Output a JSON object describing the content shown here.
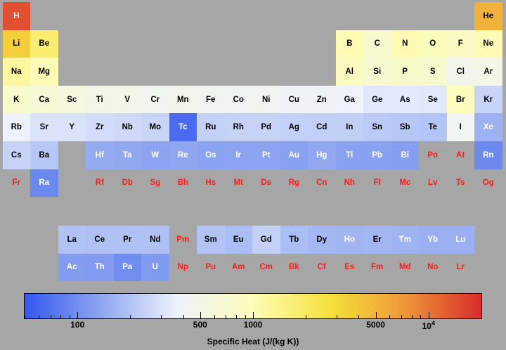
{
  "chart_data": {
    "type": "heatmap",
    "title": "",
    "colorbar": {
      "label": "Specific Heat (J/(kg K))",
      "scale": "log",
      "range": [
        50,
        20000
      ],
      "ticks": [
        {
          "value": 100,
          "label": "100"
        },
        {
          "value": 500,
          "label": "500"
        },
        {
          "value": 1000,
          "label": "1000"
        },
        {
          "value": 5000,
          "label": "5000"
        },
        {
          "value": 10000,
          "label": "10",
          "exponent": "4"
        }
      ],
      "colors": [
        "#3558f0",
        "#8ea6f0",
        "#eef3fc",
        "#fdfcb8",
        "#f6e23c",
        "#ee9838",
        "#db2c2c"
      ]
    },
    "no_data_color": "#ff1a1a",
    "elements": [
      {
        "symbol": "H",
        "row": 1,
        "col": 1,
        "value": 14300
      },
      {
        "symbol": "He",
        "row": 1,
        "col": 18,
        "value": 5193
      },
      {
        "symbol": "Li",
        "row": 2,
        "col": 1,
        "value": 3570
      },
      {
        "symbol": "Be",
        "row": 2,
        "col": 2,
        "value": 1820
      },
      {
        "symbol": "B",
        "row": 2,
        "col": 13,
        "value": 1030
      },
      {
        "symbol": "C",
        "row": 2,
        "col": 14,
        "value": 710
      },
      {
        "symbol": "N",
        "row": 2,
        "col": 15,
        "value": 1040
      },
      {
        "symbol": "O",
        "row": 2,
        "col": 16,
        "value": 919
      },
      {
        "symbol": "F",
        "row": 2,
        "col": 17,
        "value": 824
      },
      {
        "symbol": "Ne",
        "row": 2,
        "col": 18,
        "value": 1030
      },
      {
        "symbol": "Na",
        "row": 3,
        "col": 1,
        "value": 1230
      },
      {
        "symbol": "Mg",
        "row": 3,
        "col": 2,
        "value": 1020
      },
      {
        "symbol": "Al",
        "row": 3,
        "col": 13,
        "value": 897
      },
      {
        "symbol": "Si",
        "row": 3,
        "col": 14,
        "value": 705
      },
      {
        "symbol": "P",
        "row": 3,
        "col": 15,
        "value": 769
      },
      {
        "symbol": "S",
        "row": 3,
        "col": 16,
        "value": 710
      },
      {
        "symbol": "Cl",
        "row": 3,
        "col": 17,
        "value": 479
      },
      {
        "symbol": "Ar",
        "row": 3,
        "col": 18,
        "value": 520
      },
      {
        "symbol": "K",
        "row": 4,
        "col": 1,
        "value": 757
      },
      {
        "symbol": "Ca",
        "row": 4,
        "col": 2,
        "value": 647
      },
      {
        "symbol": "Sc",
        "row": 4,
        "col": 3,
        "value": 568
      },
      {
        "symbol": "Ti",
        "row": 4,
        "col": 4,
        "value": 523
      },
      {
        "symbol": "V",
        "row": 4,
        "col": 5,
        "value": 489
      },
      {
        "symbol": "Cr",
        "row": 4,
        "col": 6,
        "value": 449
      },
      {
        "symbol": "Mn",
        "row": 4,
        "col": 7,
        "value": 479
      },
      {
        "symbol": "Fe",
        "row": 4,
        "col": 8,
        "value": 449
      },
      {
        "symbol": "Co",
        "row": 4,
        "col": 9,
        "value": 421
      },
      {
        "symbol": "Ni",
        "row": 4,
        "col": 10,
        "value": 444
      },
      {
        "symbol": "Cu",
        "row": 4,
        "col": 11,
        "value": 384
      },
      {
        "symbol": "Zn",
        "row": 4,
        "col": 12,
        "value": 388
      },
      {
        "symbol": "Ga",
        "row": 4,
        "col": 13,
        "value": 371
      },
      {
        "symbol": "Ge",
        "row": 4,
        "col": 14,
        "value": 320
      },
      {
        "symbol": "As",
        "row": 4,
        "col": 15,
        "value": 329
      },
      {
        "symbol": "Se",
        "row": 4,
        "col": 16,
        "value": 321
      },
      {
        "symbol": "Br",
        "row": 4,
        "col": 17,
        "value": 947
      },
      {
        "symbol": "Kr",
        "row": 4,
        "col": 18,
        "value": 248
      },
      {
        "symbol": "Rb",
        "row": 5,
        "col": 1,
        "value": 364
      },
      {
        "symbol": "Sr",
        "row": 5,
        "col": 2,
        "value": 300
      },
      {
        "symbol": "Y",
        "row": 5,
        "col": 3,
        "value": 298
      },
      {
        "symbol": "Zr",
        "row": 5,
        "col": 4,
        "value": 278
      },
      {
        "symbol": "Nb",
        "row": 5,
        "col": 5,
        "value": 265
      },
      {
        "symbol": "Mo",
        "row": 5,
        "col": 6,
        "value": 251
      },
      {
        "symbol": "Tc",
        "row": 5,
        "col": 7,
        "value": 63
      },
      {
        "symbol": "Ru",
        "row": 5,
        "col": 8,
        "value": 238
      },
      {
        "symbol": "Rh",
        "row": 5,
        "col": 9,
        "value": 243
      },
      {
        "symbol": "Pd",
        "row": 5,
        "col": 10,
        "value": 244
      },
      {
        "symbol": "Ag",
        "row": 5,
        "col": 11,
        "value": 235
      },
      {
        "symbol": "Cd",
        "row": 5,
        "col": 12,
        "value": 232
      },
      {
        "symbol": "In",
        "row": 5,
        "col": 13,
        "value": 233
      },
      {
        "symbol": "Sn",
        "row": 5,
        "col": 14,
        "value": 217
      },
      {
        "symbol": "Sb",
        "row": 5,
        "col": 15,
        "value": 207
      },
      {
        "symbol": "Te",
        "row": 5,
        "col": 16,
        "value": 201
      },
      {
        "symbol": "I",
        "row": 5,
        "col": 17,
        "value": 429
      },
      {
        "symbol": "Xe",
        "row": 5,
        "col": 18,
        "value": 158
      },
      {
        "symbol": "Cs",
        "row": 6,
        "col": 1,
        "value": 242
      },
      {
        "symbol": "Ba",
        "row": 6,
        "col": 2,
        "value": 205
      },
      {
        "symbol": "Hf",
        "row": 6,
        "col": 4,
        "value": 144
      },
      {
        "symbol": "Ta",
        "row": 6,
        "col": 5,
        "value": 140
      },
      {
        "symbol": "W",
        "row": 6,
        "col": 6,
        "value": 132
      },
      {
        "symbol": "Re",
        "row": 6,
        "col": 7,
        "value": 137
      },
      {
        "symbol": "Os",
        "row": 6,
        "col": 8,
        "value": 130
      },
      {
        "symbol": "Ir",
        "row": 6,
        "col": 9,
        "value": 131
      },
      {
        "symbol": "Pt",
        "row": 6,
        "col": 10,
        "value": 133
      },
      {
        "symbol": "Au",
        "row": 6,
        "col": 11,
        "value": 129
      },
      {
        "symbol": "Hg",
        "row": 6,
        "col": 12,
        "value": 140
      },
      {
        "symbol": "Tl",
        "row": 6,
        "col": 13,
        "value": 129
      },
      {
        "symbol": "Pb",
        "row": 6,
        "col": 14,
        "value": 127
      },
      {
        "symbol": "Bi",
        "row": 6,
        "col": 15,
        "value": 122
      },
      {
        "symbol": "Po",
        "row": 6,
        "col": 16,
        "value": null
      },
      {
        "symbol": "At",
        "row": 6,
        "col": 17,
        "value": null
      },
      {
        "symbol": "Rn",
        "row": 6,
        "col": 18,
        "value": 94
      },
      {
        "symbol": "Fr",
        "row": 7,
        "col": 1,
        "value": null
      },
      {
        "symbol": "Ra",
        "row": 7,
        "col": 2,
        "value": 92
      },
      {
        "symbol": "Rf",
        "row": 7,
        "col": 4,
        "value": null
      },
      {
        "symbol": "Db",
        "row": 7,
        "col": 5,
        "value": null
      },
      {
        "symbol": "Sg",
        "row": 7,
        "col": 6,
        "value": null
      },
      {
        "symbol": "Bh",
        "row": 7,
        "col": 7,
        "value": null
      },
      {
        "symbol": "Hs",
        "row": 7,
        "col": 8,
        "value": null
      },
      {
        "symbol": "Mt",
        "row": 7,
        "col": 9,
        "value": null
      },
      {
        "symbol": "Ds",
        "row": 7,
        "col": 10,
        "value": null
      },
      {
        "symbol": "Rg",
        "row": 7,
        "col": 11,
        "value": null
      },
      {
        "symbol": "Cn",
        "row": 7,
        "col": 12,
        "value": null
      },
      {
        "symbol": "Nh",
        "row": 7,
        "col": 13,
        "value": null
      },
      {
        "symbol": "Fl",
        "row": 7,
        "col": 14,
        "value": null
      },
      {
        "symbol": "Mc",
        "row": 7,
        "col": 15,
        "value": null
      },
      {
        "symbol": "Lv",
        "row": 7,
        "col": 16,
        "value": null
      },
      {
        "symbol": "Ts",
        "row": 7,
        "col": 17,
        "value": null
      },
      {
        "symbol": "Og",
        "row": 7,
        "col": 18,
        "value": null
      },
      {
        "symbol": "La",
        "row": 8,
        "col": 3,
        "value": 195
      },
      {
        "symbol": "Ce",
        "row": 8,
        "col": 4,
        "value": 192
      },
      {
        "symbol": "Pr",
        "row": 8,
        "col": 5,
        "value": 193
      },
      {
        "symbol": "Nd",
        "row": 8,
        "col": 6,
        "value": 190
      },
      {
        "symbol": "Pm",
        "row": 8,
        "col": 7,
        "value": null
      },
      {
        "symbol": "Sm",
        "row": 8,
        "col": 8,
        "value": 197
      },
      {
        "symbol": "Eu",
        "row": 8,
        "col": 9,
        "value": 182
      },
      {
        "symbol": "Gd",
        "row": 8,
        "col": 10,
        "value": 236
      },
      {
        "symbol": "Tb",
        "row": 8,
        "col": 11,
        "value": 182
      },
      {
        "symbol": "Dy",
        "row": 8,
        "col": 12,
        "value": 170
      },
      {
        "symbol": "Ho",
        "row": 8,
        "col": 13,
        "value": 165
      },
      {
        "symbol": "Er",
        "row": 8,
        "col": 14,
        "value": 168
      },
      {
        "symbol": "Tm",
        "row": 8,
        "col": 15,
        "value": 160
      },
      {
        "symbol": "Yb",
        "row": 8,
        "col": 16,
        "value": 154
      },
      {
        "symbol": "Lu",
        "row": 8,
        "col": 17,
        "value": 154
      },
      {
        "symbol": "Ac",
        "row": 9,
        "col": 3,
        "value": 120
      },
      {
        "symbol": "Th",
        "row": 9,
        "col": 4,
        "value": 118
      },
      {
        "symbol": "Pa",
        "row": 9,
        "col": 5,
        "value": 99.1
      },
      {
        "symbol": "U",
        "row": 9,
        "col": 6,
        "value": 116
      },
      {
        "symbol": "Np",
        "row": 9,
        "col": 7,
        "value": null
      },
      {
        "symbol": "Pu",
        "row": 9,
        "col": 8,
        "value": null
      },
      {
        "symbol": "Am",
        "row": 9,
        "col": 9,
        "value": null
      },
      {
        "symbol": "Cm",
        "row": 9,
        "col": 10,
        "value": null
      },
      {
        "symbol": "Bk",
        "row": 9,
        "col": 11,
        "value": null
      },
      {
        "symbol": "Cf",
        "row": 9,
        "col": 12,
        "value": null
      },
      {
        "symbol": "Es",
        "row": 9,
        "col": 13,
        "value": null
      },
      {
        "symbol": "Fm",
        "row": 9,
        "col": 14,
        "value": null
      },
      {
        "symbol": "Md",
        "row": 9,
        "col": 15,
        "value": null
      },
      {
        "symbol": "No",
        "row": 9,
        "col": 16,
        "value": null
      },
      {
        "symbol": "Lr",
        "row": 9,
        "col": 17,
        "value": null
      }
    ]
  }
}
